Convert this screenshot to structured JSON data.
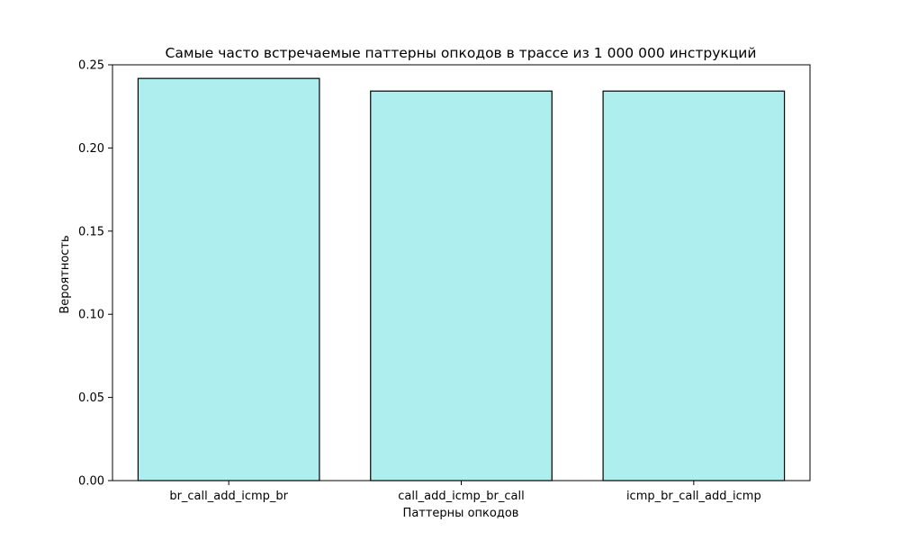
{
  "chart_data": {
    "type": "bar",
    "title": "Самые часто встречаемые паттерны опкодов в трассе из 1 000 000 инструкций",
    "xlabel": "Паттерны опкодов",
    "ylabel": "Вероятность",
    "categories": [
      "br_call_add_icmp_br",
      "call_add_icmp_br_call",
      "icmp_br_call_add_icmp"
    ],
    "values": [
      0.2418,
      0.2342,
      0.2342
    ],
    "ylim": [
      0,
      0.25
    ],
    "yticks": [
      "0.00",
      "0.05",
      "0.10",
      "0.15",
      "0.20",
      "0.25"
    ],
    "ytick_values": [
      0,
      0.05,
      0.1,
      0.15,
      0.2,
      0.25
    ],
    "grid": false,
    "bar_color": "#afeeee",
    "bar_edge_color": "#000000"
  }
}
